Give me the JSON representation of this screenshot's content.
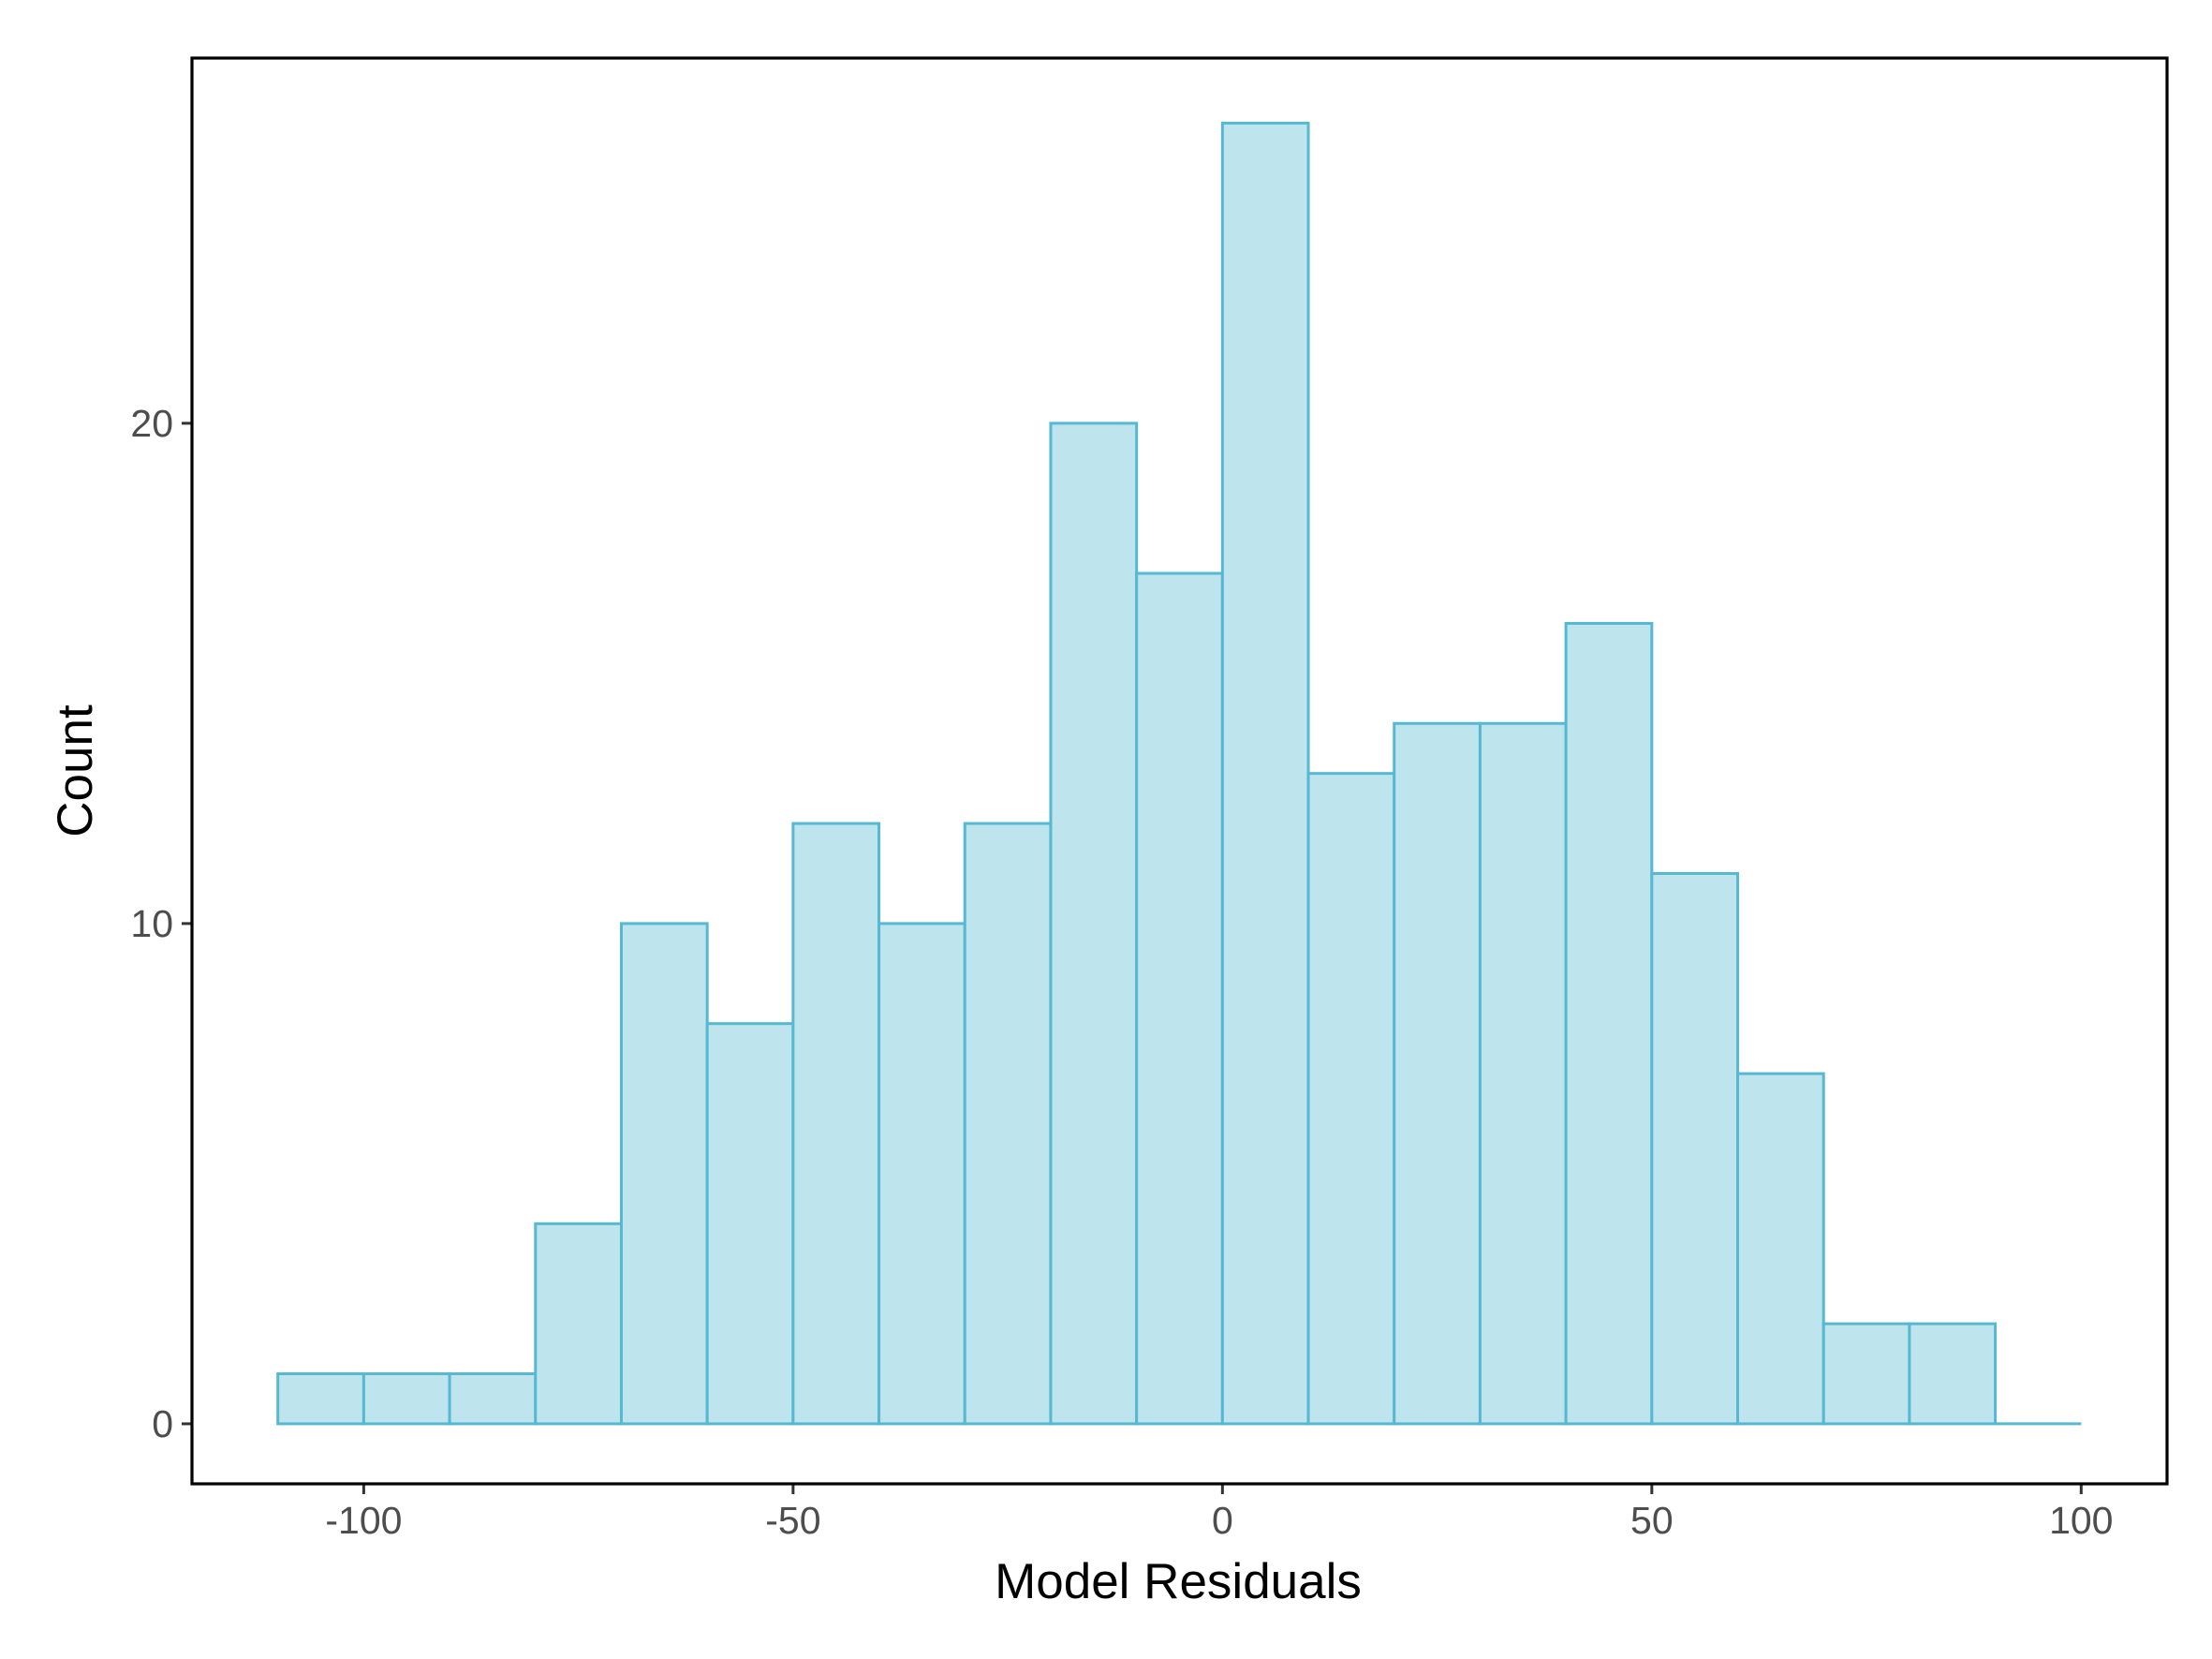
{
  "chart_data": {
    "type": "bar",
    "xlabel": "Model Residuals",
    "ylabel": "Count",
    "xlim": [
      -120,
      110
    ],
    "ylim": [
      -1.2,
      27.3
    ],
    "x_ticks": [
      -100,
      -50,
      0,
      50,
      100
    ],
    "x_tick_labels": [
      "-100",
      "-50",
      "0",
      "50",
      "100"
    ],
    "y_ticks": [
      0,
      10,
      20
    ],
    "y_tick_labels": [
      "0",
      "10",
      "20"
    ],
    "bin_width": 10,
    "bins": [
      {
        "x0": -110,
        "x1": -100,
        "count": 1
      },
      {
        "x0": -100,
        "x1": -90,
        "count": 1
      },
      {
        "x0": -90,
        "x1": -80,
        "count": 1
      },
      {
        "x0": -80,
        "x1": -70,
        "count": 4
      },
      {
        "x0": -70,
        "x1": -60,
        "count": 10
      },
      {
        "x0": -60,
        "x1": -50,
        "count": 8
      },
      {
        "x0": -50,
        "x1": -40,
        "count": 12
      },
      {
        "x0": -40,
        "x1": -30,
        "count": 10
      },
      {
        "x0": -30,
        "x1": -20,
        "count": 12
      },
      {
        "x0": -20,
        "x1": -10,
        "count": 20
      },
      {
        "x0": -10,
        "x1": 0,
        "count": 17
      },
      {
        "x0": 0,
        "x1": 10,
        "count": 26
      },
      {
        "x0": 10,
        "x1": 20,
        "count": 13
      },
      {
        "x0": 20,
        "x1": 30,
        "count": 14
      },
      {
        "x0": 30,
        "x1": 40,
        "count": 14
      },
      {
        "x0": 40,
        "x1": 50,
        "count": 16
      },
      {
        "x0": 50,
        "x1": 60,
        "count": 11
      },
      {
        "x0": 60,
        "x1": 70,
        "count": 7
      },
      {
        "x0": 70,
        "x1": 80,
        "count": 2
      },
      {
        "x0": 80,
        "x1": 90,
        "count": 2
      },
      {
        "x0": 90,
        "x1": 100,
        "count": 0
      }
    ],
    "fill_color": "#bee4ee",
    "stroke_color": "#56b8d1",
    "grid": false
  }
}
